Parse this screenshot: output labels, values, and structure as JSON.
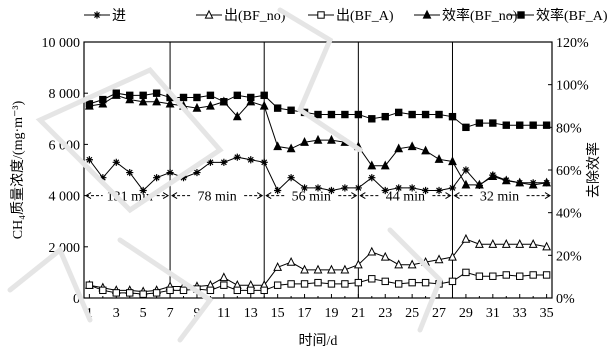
{
  "chart_data": {
    "type": "line",
    "title": "",
    "xlabel": "时间/d",
    "ylabel_left": "CH₄质量浓度/(mg·m⁻³)",
    "ylabel_right": "去除效率",
    "x": [
      1,
      2,
      3,
      4,
      5,
      6,
      7,
      8,
      9,
      10,
      11,
      12,
      13,
      14,
      15,
      16,
      17,
      18,
      19,
      20,
      21,
      22,
      23,
      24,
      25,
      26,
      27,
      28,
      29,
      30,
      31,
      32,
      33,
      34,
      35
    ],
    "x_ticks": [
      1,
      3,
      5,
      7,
      9,
      11,
      13,
      15,
      17,
      19,
      21,
      23,
      25,
      27,
      29,
      31,
      33,
      35
    ],
    "xlim": [
      0.6,
      35.4
    ],
    "ylim_left": [
      0,
      10000
    ],
    "yticks_left": [
      "0",
      "2 000",
      "4 000",
      "6 000",
      "8 000",
      "10 000"
    ],
    "ylim_right": [
      0,
      120
    ],
    "yticks_right": [
      "0%",
      "20%",
      "40%",
      "60%",
      "80%",
      "100%",
      "120%"
    ],
    "grid": false,
    "legend_position": "top",
    "phase_boundaries": [
      7,
      14,
      21,
      28
    ],
    "phases": [
      {
        "label": "131 min",
        "x_center": 4
      },
      {
        "label": "78 min",
        "x_center": 10.5
      },
      {
        "label": "56 min",
        "x_center": 17.5
      },
      {
        "label": "44 min",
        "x_center": 24.5
      },
      {
        "label": "32 min",
        "x_center": 31.5
      }
    ],
    "phase_label_y": 4000,
    "series": [
      {
        "name": "进",
        "axis": "left",
        "marker": "star",
        "values": [
          5400,
          4700,
          5300,
          4900,
          4200,
          4700,
          4900,
          4700,
          4900,
          5300,
          5300,
          5500,
          5400,
          5300,
          4200,
          4700,
          4300,
          4300,
          4200,
          4300,
          4300,
          4700,
          4200,
          4300,
          4300,
          4200,
          4200,
          4300,
          5000,
          4400,
          4800,
          4600,
          4500,
          4500,
          4500
        ]
      },
      {
        "name": "出(BF_no)",
        "axis": "left",
        "marker": "triangle-open",
        "values": [
          500,
          400,
          300,
          300,
          250,
          300,
          450,
          450,
          450,
          500,
          800,
          500,
          500,
          500,
          1200,
          1400,
          1100,
          1100,
          1100,
          1100,
          1300,
          1800,
          1600,
          1300,
          1300,
          1400,
          1500,
          1600,
          2300,
          2100,
          2100,
          2100,
          2100,
          2100,
          2000
        ]
      },
      {
        "name": "出(BF_A)",
        "axis": "left",
        "marker": "square-open",
        "values": [
          500,
          300,
          200,
          200,
          150,
          200,
          300,
          300,
          350,
          300,
          500,
          300,
          300,
          300,
          500,
          550,
          550,
          600,
          550,
          550,
          600,
          750,
          650,
          550,
          600,
          600,
          550,
          650,
          1000,
          850,
          850,
          900,
          850,
          900,
          900
        ]
      },
      {
        "name": "效率(BF_no)",
        "axis": "right",
        "marker": "triangle-filled",
        "values": [
          90,
          91,
          95,
          93,
          92,
          92,
          91,
          90,
          89,
          90,
          92,
          85,
          92,
          90,
          71,
          70,
          73,
          74,
          74,
          73,
          71,
          62,
          62,
          70,
          71,
          69,
          65,
          64,
          53,
          53,
          57,
          55,
          54,
          53,
          54
        ]
      },
      {
        "name": "效率(BF_A)",
        "axis": "right",
        "marker": "square-filled",
        "values": [
          91,
          93,
          96,
          95,
          95,
          96,
          94,
          94,
          94,
          95,
          92,
          95,
          94,
          95,
          89,
          88,
          87,
          86,
          86,
          86,
          86,
          84,
          85,
          87,
          86,
          86,
          86,
          85,
          80,
          82,
          82,
          81,
          81,
          81,
          81
        ]
      }
    ],
    "colors": {
      "line": "#000000",
      "watermark": "#e5e5e5"
    }
  }
}
